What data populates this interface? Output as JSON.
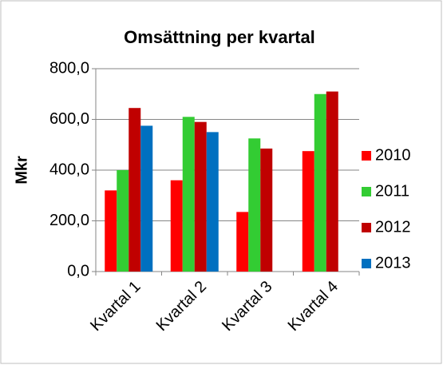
{
  "chart_data": {
    "type": "bar",
    "title": "Omsättning per kvartal",
    "y_label": "Mkr",
    "categories": [
      "Kvartal 1",
      "Kvartal 2",
      "Kvartal 3",
      "Kvartal 4"
    ],
    "series": [
      {
        "name": "2010",
        "color": "#ff0000",
        "values": [
          320,
          360,
          235,
          475
        ]
      },
      {
        "name": "2011",
        "color": "#33cc33",
        "values": [
          400,
          610,
          525,
          700
        ]
      },
      {
        "name": "2012",
        "color": "#c00000",
        "values": [
          645,
          590,
          485,
          710
        ]
      },
      {
        "name": "2013",
        "color": "#0070c0",
        "values": [
          575,
          550,
          null,
          null
        ]
      }
    ],
    "ylim": [
      0,
      800
    ],
    "yticks": [
      {
        "value": 0,
        "label": "0,0"
      },
      {
        "value": 200,
        "label": "200,0"
      },
      {
        "value": 400,
        "label": "400,0"
      },
      {
        "value": 600,
        "label": "600,0"
      },
      {
        "value": 800,
        "label": "800,0"
      }
    ],
    "grid": true,
    "legend": "right"
  }
}
